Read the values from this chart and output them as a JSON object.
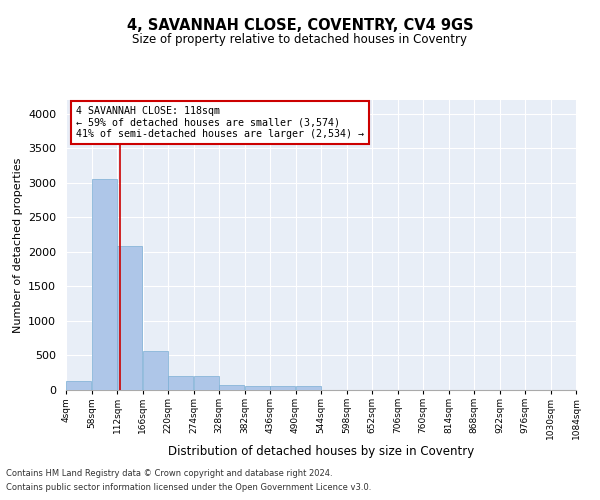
{
  "title1": "4, SAVANNAH CLOSE, COVENTRY, CV4 9GS",
  "title2": "Size of property relative to detached houses in Coventry",
  "xlabel": "Distribution of detached houses by size in Coventry",
  "ylabel": "Number of detached properties",
  "annotation_line1": "4 SAVANNAH CLOSE: 118sqm",
  "annotation_line2": "← 59% of detached houses are smaller (3,574)",
  "annotation_line3": "41% of semi-detached houses are larger (2,534) →",
  "property_size": 118,
  "bin_edges": [
    4,
    58,
    112,
    166,
    220,
    274,
    328,
    382,
    436,
    490,
    544,
    598,
    652,
    706,
    760,
    814,
    868,
    922,
    976,
    1030,
    1084
  ],
  "bar_heights": [
    130,
    3060,
    2080,
    565,
    200,
    200,
    75,
    55,
    55,
    55,
    0,
    0,
    0,
    0,
    0,
    0,
    0,
    0,
    0,
    0
  ],
  "bar_color": "#aec6e8",
  "bar_edgecolor": "#7bafd4",
  "vline_color": "#cc0000",
  "vline_x": 118,
  "annotation_box_color": "#ffffff",
  "annotation_box_edgecolor": "#cc0000",
  "background_color": "#e8eef7",
  "footer1": "Contains HM Land Registry data © Crown copyright and database right 2024.",
  "footer2": "Contains public sector information licensed under the Open Government Licence v3.0.",
  "ylim": [
    0,
    4200
  ],
  "yticks": [
    0,
    500,
    1000,
    1500,
    2000,
    2500,
    3000,
    3500,
    4000
  ]
}
